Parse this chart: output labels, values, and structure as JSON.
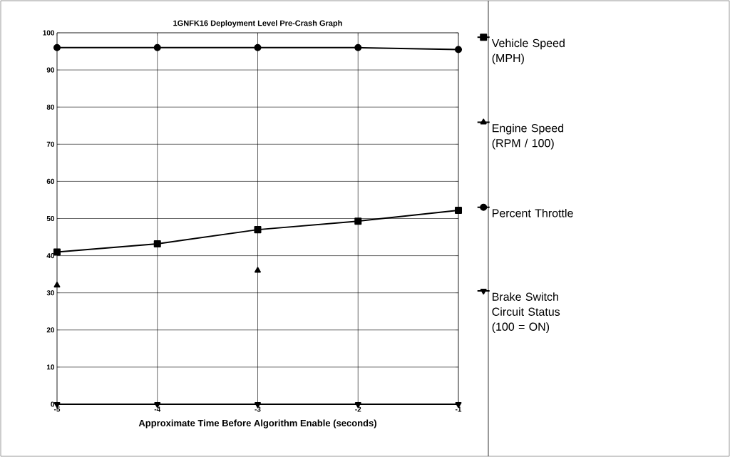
{
  "chart_data": {
    "type": "line",
    "title": "1GNFK16 Deployment Level Pre-Crash Graph",
    "xlabel": "Approximate Time Before Algorithm Enable (seconds)",
    "x": [
      -5,
      -4,
      -3,
      -2,
      -1
    ],
    "xlim": [
      -5,
      -1
    ],
    "xticks": [
      -5,
      -4,
      -3,
      -2,
      -1
    ],
    "ylim": [
      0,
      100
    ],
    "yticks": [
      0,
      10,
      20,
      30,
      40,
      50,
      60,
      70,
      80,
      90,
      100
    ],
    "grid": true,
    "legend": "right",
    "series": [
      {
        "name": "Vehicle Speed (MPH)",
        "color": "#000000",
        "marker": "square",
        "values": [
          41,
          43.2,
          47,
          49.3,
          52.2
        ]
      },
      {
        "name": "Engine Speed (RPM / 100)",
        "color": "#000000",
        "marker": "triangle",
        "values": [
          32,
          null,
          36,
          null,
          null
        ]
      },
      {
        "name": "Percent Throttle",
        "color": "#000000",
        "marker": "circle",
        "values": [
          96,
          96,
          96,
          96,
          95.5
        ]
      },
      {
        "name": "Brake Switch Circuit Status (100 = ON)",
        "color": "#000000",
        "marker": "triangle-down",
        "values": [
          0,
          0,
          0,
          0,
          0
        ]
      }
    ]
  }
}
